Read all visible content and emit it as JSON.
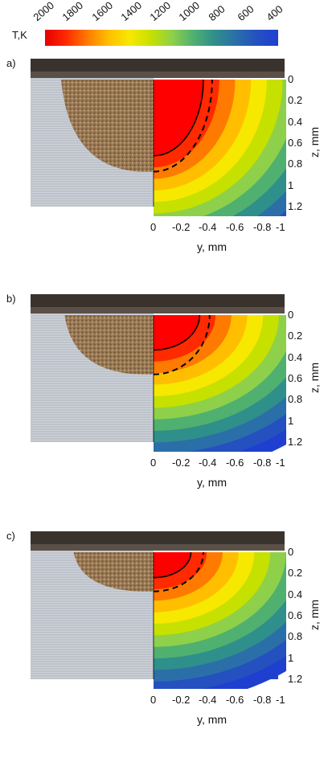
{
  "colorbar": {
    "unit_label": "T,K",
    "ticks": [
      "2000",
      "1800",
      "1600",
      "1400",
      "1200",
      "1000",
      "800",
      "600",
      "400"
    ],
    "range": [
      400,
      2000
    ],
    "colors": [
      "#e60000",
      "#ff2a00",
      "#ff7a00",
      "#ffbf00",
      "#f7e800",
      "#c6e000",
      "#8ed04a",
      "#4fb070",
      "#2f8f8a",
      "#2a6fa8",
      "#2550c0",
      "#1f3fd0"
    ]
  },
  "axes": {
    "y_ticks": [
      "0",
      "-0.2",
      "-0.4",
      "-0.6",
      "-0.8",
      "-1"
    ],
    "z_ticks": [
      "0",
      "0.2",
      "0.4",
      "0.6",
      "0.8",
      "1",
      "1.2"
    ],
    "y_label": "y, mm",
    "z_label": "z, mm"
  },
  "panels": [
    {
      "letter": "a)",
      "melt_depth_mm": 0.72,
      "dashed_depth_mm": 0.87,
      "melt_halfwidth_mm": 0.4,
      "dashed_halfwidth_mm": 0.47
    },
    {
      "letter": "b)",
      "melt_depth_mm": 0.33,
      "dashed_depth_mm": 0.56,
      "melt_halfwidth_mm": 0.37,
      "dashed_halfwidth_mm": 0.45
    },
    {
      "letter": "c)",
      "melt_depth_mm": 0.24,
      "dashed_depth_mm": 0.37,
      "melt_halfwidth_mm": 0.3,
      "dashed_halfwidth_mm": 0.4
    }
  ]
}
